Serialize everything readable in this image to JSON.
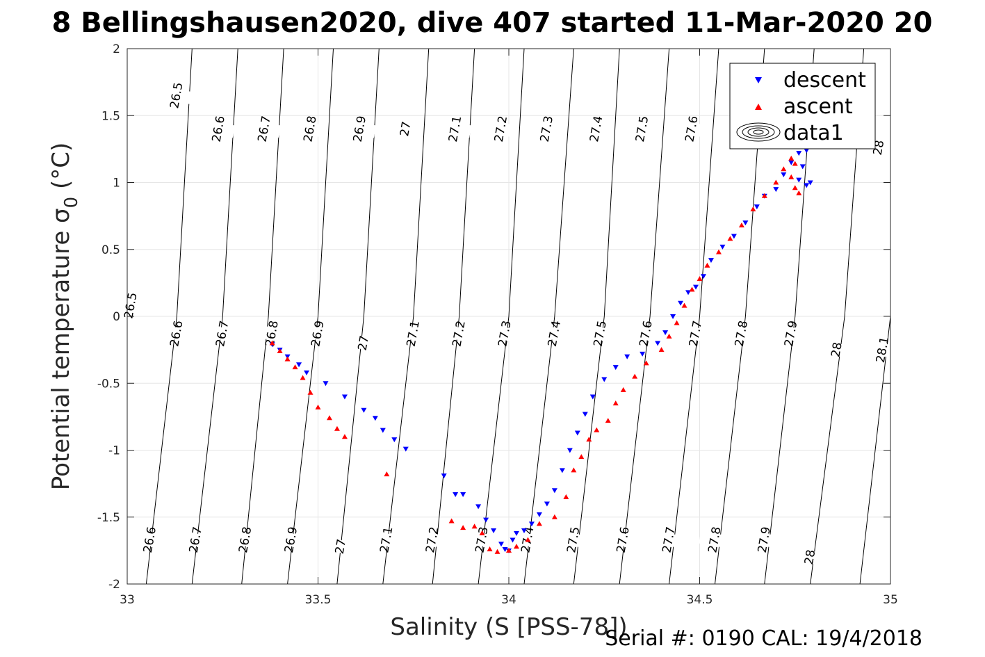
{
  "chart_data": {
    "type": "scatter",
    "title": "8 Bellingshausen2020, dive 407 started 11-Mar-2020 20",
    "xlabel": "Salinity (S [PSS-78])",
    "ylabel": "Potential temperature σ",
    "ylabel_sub": "0",
    "ylabel_unit": " (°C)",
    "footer": "Serial #: 0190  CAL: 19/4/2018",
    "xlim": [
      33,
      35
    ],
    "ylim": [
      -2,
      2
    ],
    "grid": true,
    "legend_position": "top-right",
    "xticks": [
      33,
      33.5,
      34,
      34.5,
      35
    ],
    "xtick_labels": [
      "33",
      "33.5",
      "34",
      "34.5",
      "35"
    ],
    "yticks": [
      -2,
      -1.5,
      -1,
      -0.5,
      0,
      0.5,
      1,
      1.5,
      2
    ],
    "ytick_labels": [
      "-2",
      "-1.5",
      "-1",
      "-0.5",
      "0",
      "0.5",
      "1",
      "1.5",
      "2"
    ],
    "legend": [
      {
        "name": "descent",
        "marker": "triangle-down",
        "color": "#0000ff"
      },
      {
        "name": "ascent",
        "marker": "triangle-up",
        "color": "#ff0000"
      },
      {
        "name": "data1",
        "marker": "contour",
        "color": "#000000"
      }
    ],
    "contours": [
      {
        "level": 26.5,
        "s_at_t": [
          [
            -2,
            32.73
          ],
          [
            0,
            32.99
          ],
          [
            2,
            33.0
          ]
        ]
      },
      {
        "level": 26.6,
        "s_at_t": [
          [
            -2,
            33.05
          ],
          [
            0,
            33.13
          ],
          [
            2,
            33.17
          ]
        ]
      },
      {
        "level": 26.7,
        "s_at_t": [
          [
            -2,
            33.17
          ],
          [
            0,
            33.25
          ],
          [
            2,
            33.29
          ]
        ]
      },
      {
        "level": 26.8,
        "s_at_t": [
          [
            -2,
            33.3
          ],
          [
            0,
            33.37
          ],
          [
            2,
            33.41
          ]
        ]
      },
      {
        "level": 26.9,
        "s_at_t": [
          [
            -2,
            33.42
          ],
          [
            0,
            33.5
          ],
          [
            2,
            33.54
          ]
        ]
      },
      {
        "level": 27.0,
        "s_at_t": [
          [
            -2,
            33.55
          ],
          [
            0,
            33.62
          ],
          [
            2,
            33.66
          ]
        ]
      },
      {
        "level": 27.1,
        "s_at_t": [
          [
            -2,
            33.67
          ],
          [
            0,
            33.75
          ],
          [
            2,
            33.79
          ]
        ]
      },
      {
        "level": 27.2,
        "s_at_t": [
          [
            -2,
            33.8
          ],
          [
            0,
            33.87
          ],
          [
            2,
            33.91
          ]
        ]
      },
      {
        "level": 27.3,
        "s_at_t": [
          [
            -2,
            33.92
          ],
          [
            0,
            34.0
          ],
          [
            2,
            34.04
          ]
        ]
      },
      {
        "level": 27.4,
        "s_at_t": [
          [
            -2,
            34.04
          ],
          [
            0,
            34.12
          ],
          [
            2,
            34.17
          ]
        ]
      },
      {
        "level": 27.5,
        "s_at_t": [
          [
            -2,
            34.17
          ],
          [
            0,
            34.25
          ],
          [
            2,
            34.29
          ]
        ]
      },
      {
        "level": 27.6,
        "s_at_t": [
          [
            -2,
            34.29
          ],
          [
            0,
            34.37
          ],
          [
            2,
            34.42
          ]
        ]
      },
      {
        "level": 27.7,
        "s_at_t": [
          [
            -2,
            34.42
          ],
          [
            0,
            34.5
          ],
          [
            2,
            34.55
          ]
        ]
      },
      {
        "level": 27.8,
        "s_at_t": [
          [
            -2,
            34.54
          ],
          [
            0,
            34.62
          ],
          [
            2,
            34.67
          ]
        ]
      },
      {
        "level": 27.9,
        "s_at_t": [
          [
            -2,
            34.67
          ],
          [
            0,
            34.75
          ],
          [
            2,
            34.8
          ]
        ]
      },
      {
        "level": 28.0,
        "s_at_t": [
          [
            -2,
            34.79
          ],
          [
            0,
            34.88
          ],
          [
            2,
            34.93
          ]
        ]
      },
      {
        "level": 28.1,
        "s_at_t": [
          [
            -2,
            34.92
          ],
          [
            0,
            35.0
          ],
          [
            2,
            35.06
          ]
        ]
      }
    ],
    "contour_labels": [
      {
        "text": "26.5",
        "s": 33.13,
        "t": 1.65
      },
      {
        "text": "26.6",
        "s": 33.24,
        "t": 1.4
      },
      {
        "text": "26.7",
        "s": 33.36,
        "t": 1.4
      },
      {
        "text": "26.8",
        "s": 33.48,
        "t": 1.4
      },
      {
        "text": "26.9",
        "s": 33.61,
        "t": 1.4
      },
      {
        "text": "27",
        "s": 33.73,
        "t": 1.4
      },
      {
        "text": "27.1",
        "s": 33.86,
        "t": 1.4
      },
      {
        "text": "27.2",
        "s": 33.98,
        "t": 1.4
      },
      {
        "text": "27.3",
        "s": 34.1,
        "t": 1.4
      },
      {
        "text": "27.4",
        "s": 34.23,
        "t": 1.4
      },
      {
        "text": "27.5",
        "s": 34.35,
        "t": 1.4
      },
      {
        "text": "27.6",
        "s": 34.48,
        "t": 1.4
      },
      {
        "text": "28",
        "s": 34.97,
        "t": 1.26
      },
      {
        "text": "26.5",
        "s": 33.01,
        "t": 0.08
      },
      {
        "text": "26.6",
        "s": 33.13,
        "t": -0.13
      },
      {
        "text": "26.7",
        "s": 33.25,
        "t": -0.13
      },
      {
        "text": "26.8",
        "s": 33.38,
        "t": -0.13
      },
      {
        "text": "26.9",
        "s": 33.5,
        "t": -0.13
      },
      {
        "text": "27",
        "s": 33.62,
        "t": -0.2
      },
      {
        "text": "27.1",
        "s": 33.75,
        "t": -0.13
      },
      {
        "text": "27.2",
        "s": 33.87,
        "t": -0.13
      },
      {
        "text": "27.3",
        "s": 33.99,
        "t": -0.13
      },
      {
        "text": "27.4",
        "s": 34.12,
        "t": -0.13
      },
      {
        "text": "27.5",
        "s": 34.24,
        "t": -0.13
      },
      {
        "text": "27.6",
        "s": 34.36,
        "t": -0.13
      },
      {
        "text": "27.7",
        "s": 34.49,
        "t": -0.13
      },
      {
        "text": "27.8",
        "s": 34.61,
        "t": -0.13
      },
      {
        "text": "27.9",
        "s": 34.74,
        "t": -0.13
      },
      {
        "text": "28",
        "s": 34.86,
        "t": -0.25
      },
      {
        "text": "28.1",
        "s": 34.98,
        "t": -0.25
      },
      {
        "text": "26.6",
        "s": 33.06,
        "t": -1.67
      },
      {
        "text": "26.7",
        "s": 33.18,
        "t": -1.67
      },
      {
        "text": "26.8",
        "s": 33.31,
        "t": -1.67
      },
      {
        "text": "26.9",
        "s": 33.43,
        "t": -1.67
      },
      {
        "text": "27",
        "s": 33.56,
        "t": -1.72
      },
      {
        "text": "27.1",
        "s": 33.68,
        "t": -1.67
      },
      {
        "text": "27.2",
        "s": 33.8,
        "t": -1.67
      },
      {
        "text": "27.3",
        "s": 33.93,
        "t": -1.67
      },
      {
        "text": "27.4",
        "s": 34.05,
        "t": -1.67
      },
      {
        "text": "27.5",
        "s": 34.17,
        "t": -1.67
      },
      {
        "text": "27.6",
        "s": 34.3,
        "t": -1.67
      },
      {
        "text": "27.7",
        "s": 34.42,
        "t": -1.67
      },
      {
        "text": "27.8",
        "s": 34.54,
        "t": -1.67
      },
      {
        "text": "27.9",
        "s": 34.67,
        "t": -1.67
      },
      {
        "text": "28",
        "s": 34.79,
        "t": -1.8
      }
    ],
    "series": [
      {
        "name": "descent",
        "marker": "triangle-down",
        "color": "#0000ff",
        "points": [
          [
            33.38,
            -0.21
          ],
          [
            33.4,
            -0.25
          ],
          [
            33.42,
            -0.3
          ],
          [
            33.45,
            -0.36
          ],
          [
            33.47,
            -0.42
          ],
          [
            33.52,
            -0.5
          ],
          [
            33.57,
            -0.6
          ],
          [
            33.62,
            -0.7
          ],
          [
            33.65,
            -0.76
          ],
          [
            33.67,
            -0.85
          ],
          [
            33.7,
            -0.92
          ],
          [
            33.73,
            -0.99
          ],
          [
            33.83,
            -1.19
          ],
          [
            33.86,
            -1.33
          ],
          [
            33.88,
            -1.33
          ],
          [
            33.92,
            -1.42
          ],
          [
            33.94,
            -1.52
          ],
          [
            33.96,
            -1.6
          ],
          [
            33.98,
            -1.7
          ],
          [
            33.99,
            -1.74
          ],
          [
            34.0,
            -1.75
          ],
          [
            34.01,
            -1.67
          ],
          [
            34.02,
            -1.62
          ],
          [
            34.04,
            -1.6
          ],
          [
            34.06,
            -1.55
          ],
          [
            34.08,
            -1.48
          ],
          [
            34.1,
            -1.4
          ],
          [
            34.12,
            -1.3
          ],
          [
            34.14,
            -1.15
          ],
          [
            34.16,
            -1.0
          ],
          [
            34.18,
            -0.87
          ],
          [
            34.2,
            -0.73
          ],
          [
            34.22,
            -0.6
          ],
          [
            34.25,
            -0.47
          ],
          [
            34.28,
            -0.38
          ],
          [
            34.31,
            -0.3
          ],
          [
            34.35,
            -0.28
          ],
          [
            34.39,
            -0.2
          ],
          [
            34.41,
            -0.12
          ],
          [
            34.43,
            0.0
          ],
          [
            34.45,
            0.1
          ],
          [
            34.47,
            0.18
          ],
          [
            34.49,
            0.22
          ],
          [
            34.51,
            0.3
          ],
          [
            34.53,
            0.42
          ],
          [
            34.56,
            0.52
          ],
          [
            34.59,
            0.6
          ],
          [
            34.62,
            0.7
          ],
          [
            34.65,
            0.82
          ],
          [
            34.67,
            0.9
          ],
          [
            34.7,
            0.95
          ],
          [
            34.72,
            1.06
          ],
          [
            34.74,
            1.15
          ],
          [
            34.76,
            1.22
          ],
          [
            34.77,
            1.3
          ],
          [
            34.78,
            1.24
          ],
          [
            34.77,
            1.12
          ],
          [
            34.76,
            1.02
          ],
          [
            34.78,
            0.98
          ],
          [
            34.79,
            1.0
          ]
        ]
      },
      {
        "name": "ascent",
        "marker": "triangle-up",
        "color": "#ff0000",
        "points": [
          [
            33.38,
            -0.2
          ],
          [
            33.4,
            -0.26
          ],
          [
            33.42,
            -0.32
          ],
          [
            33.44,
            -0.38
          ],
          [
            33.46,
            -0.46
          ],
          [
            33.48,
            -0.57
          ],
          [
            33.5,
            -0.68
          ],
          [
            33.53,
            -0.76
          ],
          [
            33.55,
            -0.84
          ],
          [
            33.57,
            -0.9
          ],
          [
            33.68,
            -1.18
          ],
          [
            33.85,
            -1.53
          ],
          [
            33.88,
            -1.58
          ],
          [
            33.91,
            -1.57
          ],
          [
            33.93,
            -1.62
          ],
          [
            33.95,
            -1.74
          ],
          [
            33.97,
            -1.76
          ],
          [
            34.0,
            -1.75
          ],
          [
            34.02,
            -1.72
          ],
          [
            34.05,
            -1.67
          ],
          [
            34.08,
            -1.55
          ],
          [
            34.12,
            -1.5
          ],
          [
            34.15,
            -1.35
          ],
          [
            34.17,
            -1.15
          ],
          [
            34.19,
            -1.05
          ],
          [
            34.21,
            -0.92
          ],
          [
            34.23,
            -0.85
          ],
          [
            34.26,
            -0.78
          ],
          [
            34.28,
            -0.65
          ],
          [
            34.3,
            -0.55
          ],
          [
            34.33,
            -0.45
          ],
          [
            34.36,
            -0.35
          ],
          [
            34.4,
            -0.25
          ],
          [
            34.42,
            -0.15
          ],
          [
            34.44,
            -0.05
          ],
          [
            34.46,
            0.08
          ],
          [
            34.48,
            0.2
          ],
          [
            34.5,
            0.28
          ],
          [
            34.52,
            0.38
          ],
          [
            34.55,
            0.48
          ],
          [
            34.58,
            0.58
          ],
          [
            34.61,
            0.68
          ],
          [
            34.64,
            0.8
          ],
          [
            34.67,
            0.9
          ],
          [
            34.7,
            1.0
          ],
          [
            34.72,
            1.1
          ],
          [
            34.74,
            1.18
          ],
          [
            34.75,
            1.14
          ],
          [
            34.74,
            1.04
          ],
          [
            34.75,
            0.96
          ],
          [
            34.76,
            0.92
          ],
          [
            34.75,
            1.28
          ]
        ]
      }
    ]
  }
}
